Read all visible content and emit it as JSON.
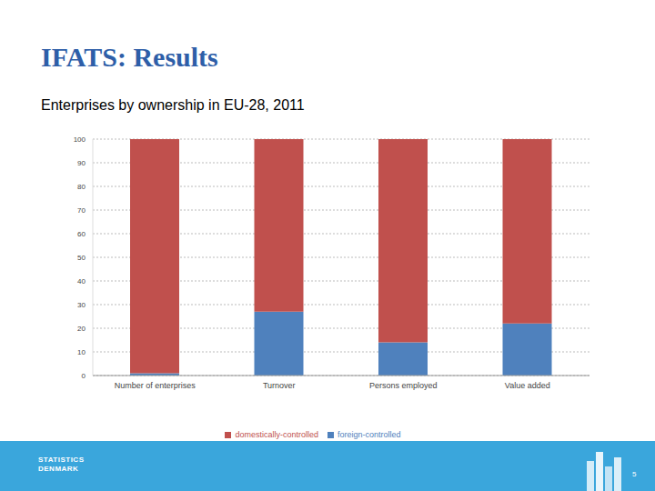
{
  "chart_data": {
    "type": "bar",
    "title": "IFATS: Results",
    "subtitle": "Enterprises by ownership in EU-28, 2011",
    "categories": [
      "Number of enterprises",
      "Turnover",
      "Persons employed",
      "Value added"
    ],
    "series": [
      {
        "name": "foreign-controlled",
        "color": "#4f81bd",
        "values": [
          1,
          27,
          14,
          22
        ]
      },
      {
        "name": "domestically-controlled",
        "color": "#c0504d",
        "values": [
          99,
          73,
          86,
          78
        ]
      }
    ],
    "ylim": [
      0,
      100
    ],
    "yticks": [
      0,
      10,
      20,
      30,
      40,
      50,
      60,
      70,
      80,
      90,
      100
    ],
    "grid": true,
    "stacked": true,
    "legend": "bottom"
  },
  "footer": {
    "logo": [
      "STATISTICS",
      "DENMARK"
    ],
    "page": 5
  }
}
